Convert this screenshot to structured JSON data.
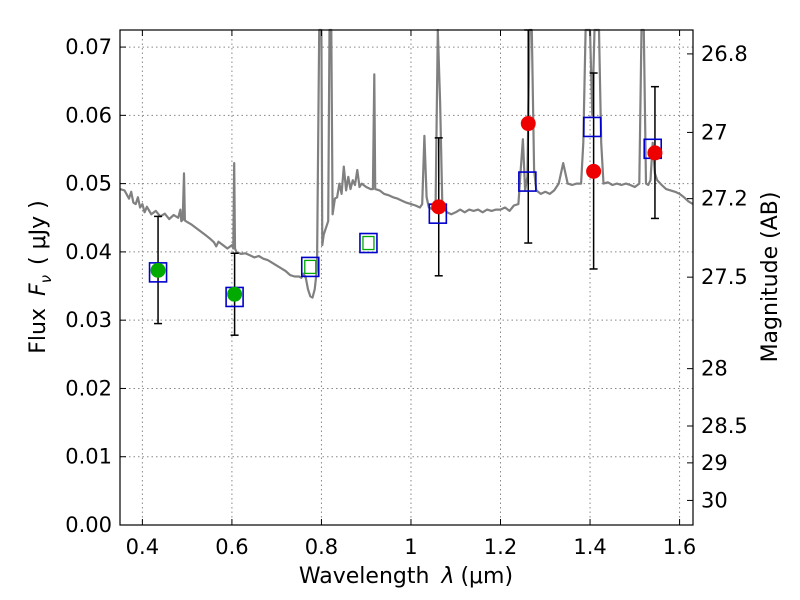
{
  "chart_data": {
    "type": "scatter",
    "xlabel_text": "Wavelength",
    "xlabel_symbol": "λ",
    "xlabel_unit": "(μm)",
    "ylabel_text": "Flux",
    "ylabel_symbol": "F",
    "ylabel_subscript": "ν",
    "ylabel_unit": "( μJy )",
    "y2label": "Magnitude (AB)",
    "xlim": [
      0.35,
      1.63
    ],
    "ylim": [
      0.0,
      0.0725
    ],
    "grid": true,
    "x_ticks": [
      0.4,
      0.6,
      0.8,
      1.0,
      1.2,
      1.4,
      1.6
    ],
    "x_tick_labels": [
      "0.4",
      "0.6",
      "0.8",
      "1",
      "1.2",
      "1.4",
      "1.6"
    ],
    "y_ticks": [
      0.0,
      0.01,
      0.02,
      0.03,
      0.04,
      0.05,
      0.06,
      0.07
    ],
    "y_tick_labels": [
      "0.00",
      "0.01",
      "0.02",
      "0.03",
      "0.04",
      "0.05",
      "0.06",
      "0.07"
    ],
    "y2_ticks": [
      {
        "label": "26.8",
        "flux": 0.069
      },
      {
        "label": "27",
        "flux": 0.0575
      },
      {
        "label": "27.2",
        "flux": 0.0478
      },
      {
        "label": "27.5",
        "flux": 0.0363
      },
      {
        "label": "28",
        "flux": 0.0229
      },
      {
        "label": "28.5",
        "flux": 0.0145
      },
      {
        "label": "29",
        "flux": 0.0091
      },
      {
        "label": "30",
        "flux": 0.0036
      }
    ],
    "colors": {
      "model": "#808080",
      "square": "#0000cc",
      "green": "#00aa00",
      "red": "#ee0000",
      "errorbar": "#000000",
      "grid": "#888888"
    },
    "model_spectrum": [
      [
        0.35,
        0.0492
      ],
      [
        0.36,
        0.049
      ],
      [
        0.37,
        0.0478
      ],
      [
        0.375,
        0.0488
      ],
      [
        0.38,
        0.0472
      ],
      [
        0.385,
        0.047
      ],
      [
        0.39,
        0.048
      ],
      [
        0.395,
        0.0465
      ],
      [
        0.4,
        0.047
      ],
      [
        0.405,
        0.0458
      ],
      [
        0.41,
        0.0466
      ],
      [
        0.42,
        0.0455
      ],
      [
        0.43,
        0.046
      ],
      [
        0.44,
        0.0452
      ],
      [
        0.45,
        0.0456
      ],
      [
        0.46,
        0.0448
      ],
      [
        0.47,
        0.0454
      ],
      [
        0.48,
        0.045
      ],
      [
        0.485,
        0.0462
      ],
      [
        0.487,
        0.0445
      ],
      [
        0.49,
        0.0447
      ],
      [
        0.493,
        0.0515
      ],
      [
        0.495,
        0.0446
      ],
      [
        0.5,
        0.0444
      ],
      [
        0.51,
        0.044
      ],
      [
        0.52,
        0.0435
      ],
      [
        0.53,
        0.043
      ],
      [
        0.54,
        0.0425
      ],
      [
        0.55,
        0.042
      ],
      [
        0.56,
        0.0414
      ],
      [
        0.565,
        0.0408
      ],
      [
        0.57,
        0.0415
      ],
      [
        0.58,
        0.041
      ],
      [
        0.59,
        0.0405
      ],
      [
        0.6,
        0.041
      ],
      [
        0.603,
        0.0405
      ],
      [
        0.605,
        0.053
      ],
      [
        0.607,
        0.0405
      ],
      [
        0.61,
        0.04
      ],
      [
        0.62,
        0.0397
      ],
      [
        0.63,
        0.0398
      ],
      [
        0.64,
        0.0395
      ],
      [
        0.65,
        0.0392
      ],
      [
        0.66,
        0.0394
      ],
      [
        0.67,
        0.039
      ],
      [
        0.68,
        0.0388
      ],
      [
        0.69,
        0.0384
      ],
      [
        0.7,
        0.038
      ],
      [
        0.71,
        0.0376
      ],
      [
        0.72,
        0.0372
      ],
      [
        0.73,
        0.0366
      ],
      [
        0.74,
        0.0364
      ],
      [
        0.75,
        0.0364
      ],
      [
        0.755,
        0.0362
      ],
      [
        0.76,
        0.0368
      ],
      [
        0.765,
        0.0362
      ],
      [
        0.77,
        0.0345
      ],
      [
        0.775,
        0.0335
      ],
      [
        0.78,
        0.0333
      ],
      [
        0.785,
        0.0345
      ],
      [
        0.79,
        0.0375
      ],
      [
        0.795,
        0.074
      ],
      [
        0.8,
        0.074
      ],
      [
        0.802,
        0.041
      ],
      [
        0.805,
        0.0425
      ],
      [
        0.81,
        0.0435
      ],
      [
        0.815,
        0.0445
      ],
      [
        0.818,
        0.074
      ],
      [
        0.822,
        0.074
      ],
      [
        0.825,
        0.0455
      ],
      [
        0.83,
        0.0478
      ],
      [
        0.835,
        0.048
      ],
      [
        0.84,
        0.05
      ],
      [
        0.845,
        0.0485
      ],
      [
        0.85,
        0.0525
      ],
      [
        0.855,
        0.049
      ],
      [
        0.86,
        0.051
      ],
      [
        0.865,
        0.0492
      ],
      [
        0.87,
        0.0505
      ],
      [
        0.875,
        0.0498
      ],
      [
        0.88,
        0.052
      ],
      [
        0.885,
        0.0495
      ],
      [
        0.89,
        0.05
      ],
      [
        0.9,
        0.0495
      ],
      [
        0.91,
        0.0492
      ],
      [
        0.915,
        0.0492
      ],
      [
        0.918,
        0.066
      ],
      [
        0.92,
        0.0492
      ],
      [
        0.93,
        0.049
      ],
      [
        0.94,
        0.0485
      ],
      [
        0.95,
        0.0483
      ],
      [
        0.96,
        0.048
      ],
      [
        0.97,
        0.0478
      ],
      [
        0.98,
        0.0475
      ],
      [
        0.99,
        0.0472
      ],
      [
        1.0,
        0.047
      ],
      [
        1.01,
        0.0468
      ],
      [
        1.02,
        0.0465
      ],
      [
        1.025,
        0.047
      ],
      [
        1.03,
        0.057
      ],
      [
        1.035,
        0.048
      ],
      [
        1.04,
        0.0465
      ],
      [
        1.05,
        0.0462
      ],
      [
        1.055,
        0.047
      ],
      [
        1.06,
        0.074
      ],
      [
        1.065,
        0.062
      ],
      [
        1.07,
        0.047
      ],
      [
        1.08,
        0.0458
      ],
      [
        1.09,
        0.0455
      ],
      [
        1.1,
        0.0458
      ],
      [
        1.11,
        0.0462
      ],
      [
        1.12,
        0.0458
      ],
      [
        1.13,
        0.0462
      ],
      [
        1.14,
        0.046
      ],
      [
        1.15,
        0.0462
      ],
      [
        1.16,
        0.0458
      ],
      [
        1.17,
        0.0462
      ],
      [
        1.18,
        0.046
      ],
      [
        1.19,
        0.0462
      ],
      [
        1.2,
        0.0462
      ],
      [
        1.21,
        0.0465
      ],
      [
        1.22,
        0.046
      ],
      [
        1.23,
        0.0468
      ],
      [
        1.24,
        0.047
      ],
      [
        1.245,
        0.052
      ],
      [
        1.25,
        0.0565
      ],
      [
        1.255,
        0.049
      ],
      [
        1.26,
        0.051
      ],
      [
        1.265,
        0.074
      ],
      [
        1.27,
        0.074
      ],
      [
        1.275,
        0.052
      ],
      [
        1.28,
        0.049
      ],
      [
        1.29,
        0.0485
      ],
      [
        1.3,
        0.0488
      ],
      [
        1.31,
        0.0485
      ],
      [
        1.32,
        0.049
      ],
      [
        1.33,
        0.05
      ],
      [
        1.34,
        0.053
      ],
      [
        1.35,
        0.05
      ],
      [
        1.36,
        0.0498
      ],
      [
        1.37,
        0.05
      ],
      [
        1.38,
        0.05
      ],
      [
        1.385,
        0.056
      ],
      [
        1.39,
        0.074
      ],
      [
        1.4,
        0.074
      ],
      [
        1.405,
        0.06
      ],
      [
        1.41,
        0.074
      ],
      [
        1.42,
        0.074
      ],
      [
        1.425,
        0.056
      ],
      [
        1.43,
        0.05
      ],
      [
        1.44,
        0.0502
      ],
      [
        1.45,
        0.0498
      ],
      [
        1.46,
        0.05
      ],
      [
        1.47,
        0.0498
      ],
      [
        1.48,
        0.05
      ],
      [
        1.49,
        0.0498
      ],
      [
        1.5,
        0.0495
      ],
      [
        1.51,
        0.05
      ],
      [
        1.515,
        0.074
      ],
      [
        1.52,
        0.074
      ],
      [
        1.525,
        0.05
      ],
      [
        1.53,
        0.0498
      ],
      [
        1.535,
        0.0505
      ],
      [
        1.54,
        0.056
      ],
      [
        1.545,
        0.0515
      ],
      [
        1.55,
        0.0505
      ],
      [
        1.56,
        0.0498
      ],
      [
        1.57,
        0.0492
      ],
      [
        1.58,
        0.049
      ],
      [
        1.59,
        0.0488
      ],
      [
        1.6,
        0.0485
      ],
      [
        1.61,
        0.048
      ],
      [
        1.62,
        0.0474
      ],
      [
        1.63,
        0.047
      ]
    ],
    "model_photometry": [
      {
        "x": 0.435,
        "y": 0.037,
        "inner": "none"
      },
      {
        "x": 0.606,
        "y": 0.0334,
        "inner": "none"
      },
      {
        "x": 0.775,
        "y": 0.0378,
        "inner": "green"
      },
      {
        "x": 0.905,
        "y": 0.0413,
        "inner": "green"
      },
      {
        "x": 1.06,
        "y": 0.0456,
        "inner": "none"
      },
      {
        "x": 1.26,
        "y": 0.0503,
        "inner": "none"
      },
      {
        "x": 1.405,
        "y": 0.0583,
        "inner": "none"
      },
      {
        "x": 1.54,
        "y": 0.0551,
        "inner": "none"
      }
    ],
    "observed": [
      {
        "x": 0.435,
        "y": 0.0373,
        "err_low": 0.0295,
        "err_high": 0.0452,
        "color": "green"
      },
      {
        "x": 0.606,
        "y": 0.0338,
        "err_low": 0.0278,
        "err_high": 0.0398,
        "color": "green"
      },
      {
        "x": 1.062,
        "y": 0.0466,
        "err_low": 0.0365,
        "err_high": 0.0567,
        "color": "red"
      },
      {
        "x": 1.262,
        "y": 0.0588,
        "err_low": 0.0413,
        "err_high": 0.0725,
        "color": "red"
      },
      {
        "x": 1.408,
        "y": 0.0518,
        "err_low": 0.0375,
        "err_high": 0.0662,
        "color": "red"
      },
      {
        "x": 1.545,
        "y": 0.0545,
        "err_low": 0.0449,
        "err_high": 0.0642,
        "color": "red"
      }
    ]
  }
}
